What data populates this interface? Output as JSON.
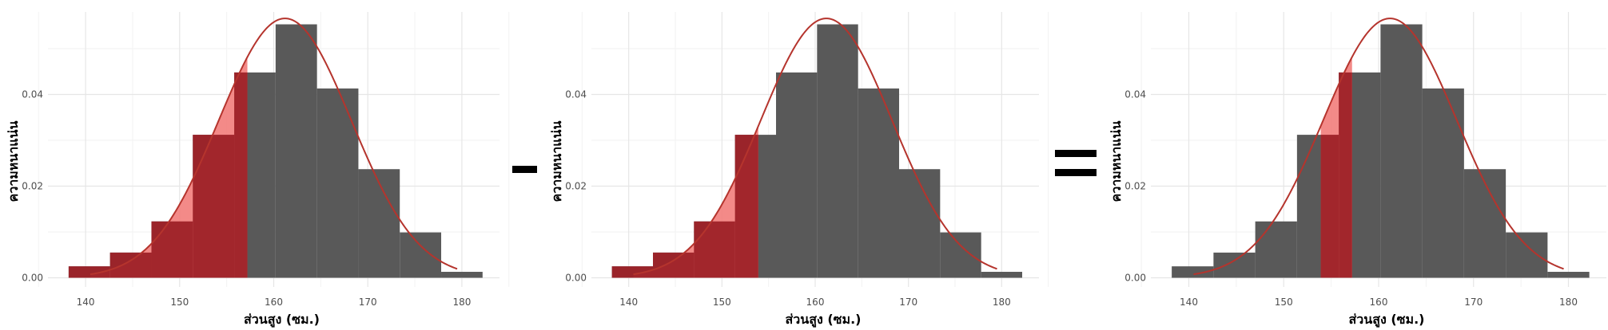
{
  "chart_data": [
    {
      "type": "histogram",
      "xlabel": "ส่วนสูง (ซม.)",
      "ylabel": "ความหนาแน่น",
      "xticks": [
        140,
        150,
        160,
        170,
        180
      ],
      "yticks": [
        0.0,
        0.02,
        0.04
      ],
      "ytick_labels": [
        "0.00",
        "0.02",
        "0.04"
      ],
      "xlim": [
        136,
        184
      ],
      "ylim": [
        -0.002,
        0.058
      ],
      "grid": true,
      "bins": [
        {
          "x0": 138.2,
          "x1": 142.6,
          "density": 0.0025
        },
        {
          "x0": 142.6,
          "x1": 147.0,
          "density": 0.0055
        },
        {
          "x0": 147.0,
          "x1": 151.4,
          "density": 0.0123
        },
        {
          "x0": 151.4,
          "x1": 155.8,
          "density": 0.0312
        },
        {
          "x0": 155.8,
          "x1": 160.2,
          "density": 0.0448
        },
        {
          "x0": 160.2,
          "x1": 164.6,
          "density": 0.0553
        },
        {
          "x0": 164.6,
          "x1": 169.0,
          "density": 0.0413
        },
        {
          "x0": 169.0,
          "x1": 173.4,
          "density": 0.0237
        },
        {
          "x0": 173.4,
          "x1": 177.8,
          "density": 0.0099
        },
        {
          "x0": 177.8,
          "x1": 182.2,
          "density": 0.0013
        }
      ],
      "normal_curve": {
        "mean": 161.2,
        "sd": 7.05,
        "x_from": 140.5,
        "x_to": 179.5
      },
      "shaded_range": [
        138.2,
        157.2
      ]
    },
    {
      "type": "histogram",
      "xlabel": "ส่วนสูง (ซม.)",
      "ylabel": "ความหนาแน่น",
      "xticks": [
        140,
        150,
        160,
        170,
        180
      ],
      "yticks": [
        0.0,
        0.02,
        0.04
      ],
      "ytick_labels": [
        "0.00",
        "0.02",
        "0.04"
      ],
      "xlim": [
        136,
        184
      ],
      "ylim": [
        -0.002,
        0.058
      ],
      "grid": true,
      "bins": [
        {
          "x0": 138.2,
          "x1": 142.6,
          "density": 0.0025
        },
        {
          "x0": 142.6,
          "x1": 147.0,
          "density": 0.0055
        },
        {
          "x0": 147.0,
          "x1": 151.4,
          "density": 0.0123
        },
        {
          "x0": 151.4,
          "x1": 155.8,
          "density": 0.0312
        },
        {
          "x0": 155.8,
          "x1": 160.2,
          "density": 0.0448
        },
        {
          "x0": 160.2,
          "x1": 164.6,
          "density": 0.0553
        },
        {
          "x0": 164.6,
          "x1": 169.0,
          "density": 0.0413
        },
        {
          "x0": 169.0,
          "x1": 173.4,
          "density": 0.0237
        },
        {
          "x0": 173.4,
          "x1": 177.8,
          "density": 0.0099
        },
        {
          "x0": 177.8,
          "x1": 182.2,
          "density": 0.0013
        }
      ],
      "normal_curve": {
        "mean": 161.2,
        "sd": 7.05,
        "x_from": 140.5,
        "x_to": 179.5
      },
      "shaded_range": [
        138.2,
        153.9
      ]
    },
    {
      "type": "histogram",
      "xlabel": "ส่วนสูง (ซม.)",
      "ylabel": "ความหนาแน่น",
      "xticks": [
        140,
        150,
        160,
        170,
        180
      ],
      "yticks": [
        0.0,
        0.02,
        0.04
      ],
      "ytick_labels": [
        "0.00",
        "0.02",
        "0.04"
      ],
      "xlim": [
        136,
        184
      ],
      "ylim": [
        -0.002,
        0.058
      ],
      "grid": true,
      "bins": [
        {
          "x0": 138.2,
          "x1": 142.6,
          "density": 0.0025
        },
        {
          "x0": 142.6,
          "x1": 147.0,
          "density": 0.0055
        },
        {
          "x0": 147.0,
          "x1": 151.4,
          "density": 0.0123
        },
        {
          "x0": 151.4,
          "x1": 155.8,
          "density": 0.0312
        },
        {
          "x0": 155.8,
          "x1": 160.2,
          "density": 0.0448
        },
        {
          "x0": 160.2,
          "x1": 164.6,
          "density": 0.0553
        },
        {
          "x0": 164.6,
          "x1": 169.0,
          "density": 0.0413
        },
        {
          "x0": 169.0,
          "x1": 173.4,
          "density": 0.0237
        },
        {
          "x0": 173.4,
          "x1": 177.8,
          "density": 0.0099
        },
        {
          "x0": 177.8,
          "x1": 182.2,
          "density": 0.0013
        }
      ],
      "normal_curve": {
        "mean": 161.2,
        "sd": 7.05,
        "x_from": 140.5,
        "x_to": 179.5
      },
      "shaded_range": [
        153.9,
        157.2
      ]
    }
  ],
  "colors": {
    "bar": "#595959",
    "curve": "#b5342d",
    "fill_light": "#f27d7b",
    "fill_dark": "#9e2228",
    "grid_major": "#e6e6e6",
    "grid_minor": "#f2f2f2",
    "operator": "#000000"
  },
  "operators": [
    "minus",
    "equals"
  ]
}
